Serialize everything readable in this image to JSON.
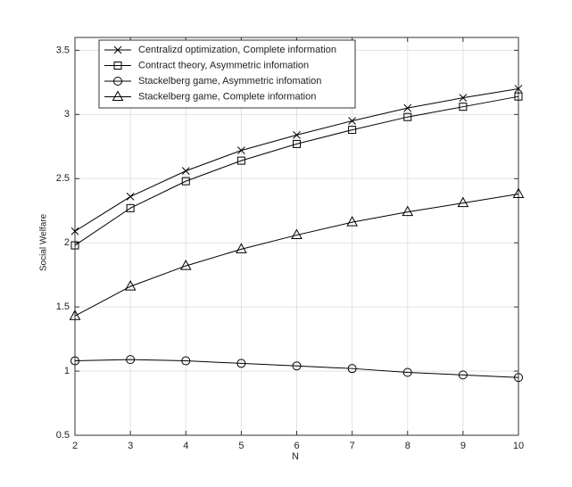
{
  "chart_data": {
    "type": "line",
    "xlabel": "N",
    "ylabel": "Social Welfare",
    "x": [
      2,
      3,
      4,
      5,
      6,
      7,
      8,
      9,
      10
    ],
    "xlim": [
      2,
      10
    ],
    "xticks": [
      2,
      3,
      4,
      5,
      6,
      7,
      8,
      9,
      10
    ],
    "ylim": [
      0.5,
      3.6
    ],
    "yticks": [
      0.5,
      1,
      1.5,
      2,
      2.5,
      3,
      3.5
    ],
    "grid": true,
    "legend": "upper left",
    "series": [
      {
        "name": "Centralizd optimization, Complete information",
        "color": "#000000",
        "marker": "x",
        "values": [
          2.09,
          2.36,
          2.56,
          2.72,
          2.84,
          2.95,
          3.05,
          3.13,
          3.2
        ]
      },
      {
        "name": "Contract theory, Asymmetric infomation",
        "color": "#000000",
        "marker": "square",
        "values": [
          1.98,
          2.27,
          2.48,
          2.64,
          2.77,
          2.88,
          2.98,
          3.06,
          3.14
        ]
      },
      {
        "name": "Stackelberg game, Asymmetric infomation",
        "color": "#000000",
        "marker": "circle",
        "values": [
          1.08,
          1.09,
          1.08,
          1.06,
          1.04,
          1.02,
          0.99,
          0.97,
          0.95
        ]
      },
      {
        "name": "Stackelberg game, Complete information",
        "color": "#000000",
        "marker": "triangle",
        "values": [
          1.43,
          1.66,
          1.82,
          1.95,
          2.06,
          2.16,
          2.24,
          2.31,
          2.38
        ]
      }
    ]
  }
}
